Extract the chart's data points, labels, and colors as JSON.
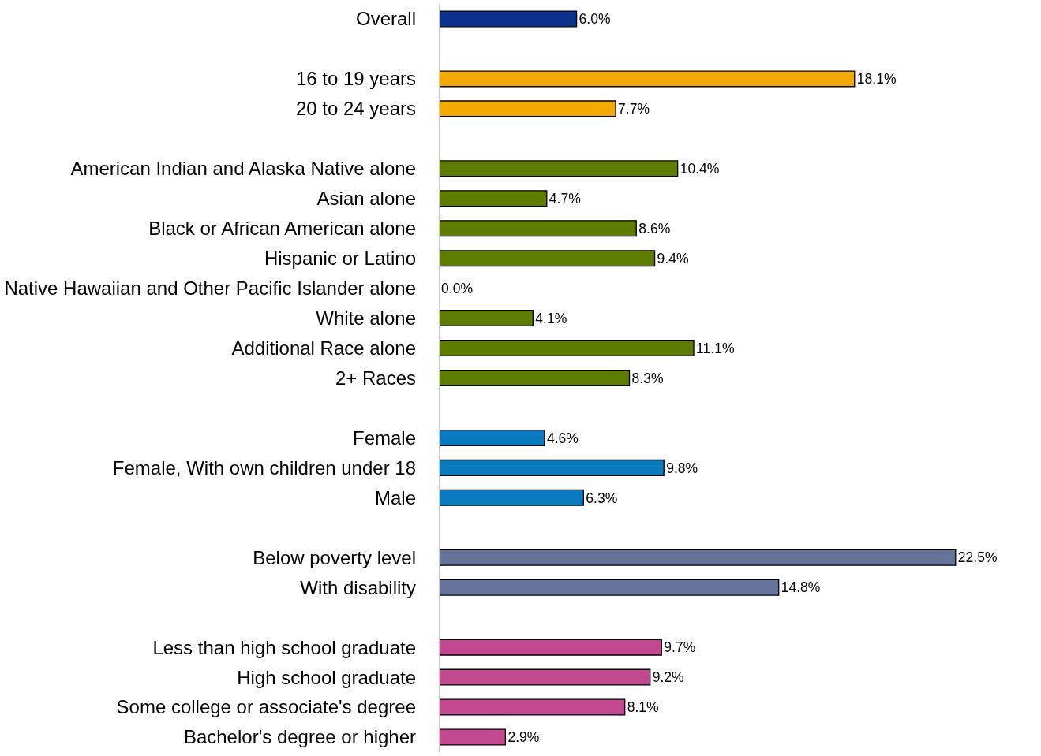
{
  "chart_data": {
    "type": "bar",
    "orientation": "horizontal",
    "legend": false,
    "value_labels": [
      "6.0%",
      null,
      "18.1%",
      "7.7%",
      null,
      "10.4%",
      "4.7%",
      "8.6%",
      "9.4%",
      "0.0%",
      "4.1%",
      "11.1%",
      "8.3%",
      null,
      "4.6%",
      "9.8%",
      "6.3%",
      null,
      "22.5%",
      "14.8%",
      null,
      "9.7%",
      "9.2%",
      "8.1%",
      "2.9%"
    ],
    "categories": [
      "Overall",
      null,
      "16 to 19 years",
      "20 to 24 years",
      null,
      "American Indian and Alaska Native alone",
      "Asian alone",
      "Black or African American alone",
      "Hispanic or Latino",
      "Native Hawaiian and Other Pacific Islander alone",
      "White alone",
      "Additional Race alone",
      "2+ Races",
      null,
      "Female",
      "Female, With own children under 18",
      "Male",
      null,
      "Below poverty level",
      "With disability",
      null,
      "Less than high school graduate",
      "High school graduate",
      "Some college or associate's degree",
      "Bachelor's degree or higher"
    ],
    "values": [
      6.0,
      null,
      18.1,
      7.7,
      null,
      10.4,
      4.7,
      8.6,
      9.4,
      0.0,
      4.1,
      11.1,
      8.3,
      null,
      4.6,
      9.8,
      6.3,
      null,
      22.5,
      14.8,
      null,
      9.7,
      9.2,
      8.1,
      2.9
    ],
    "colors": [
      "#0b318f",
      null,
      "#f2a900",
      "#f2a900",
      null,
      "#5e7c00",
      "#5e7c00",
      "#5e7c00",
      "#5e7c00",
      "#5e7c00",
      "#5e7c00",
      "#5e7c00",
      "#5e7c00",
      null,
      "#0b7bc0",
      "#0b7bc0",
      "#0b7bc0",
      null,
      "#65739a",
      "#65739a",
      null,
      "#c2488f",
      "#c2488f",
      "#c2488f",
      "#c2488f"
    ]
  }
}
